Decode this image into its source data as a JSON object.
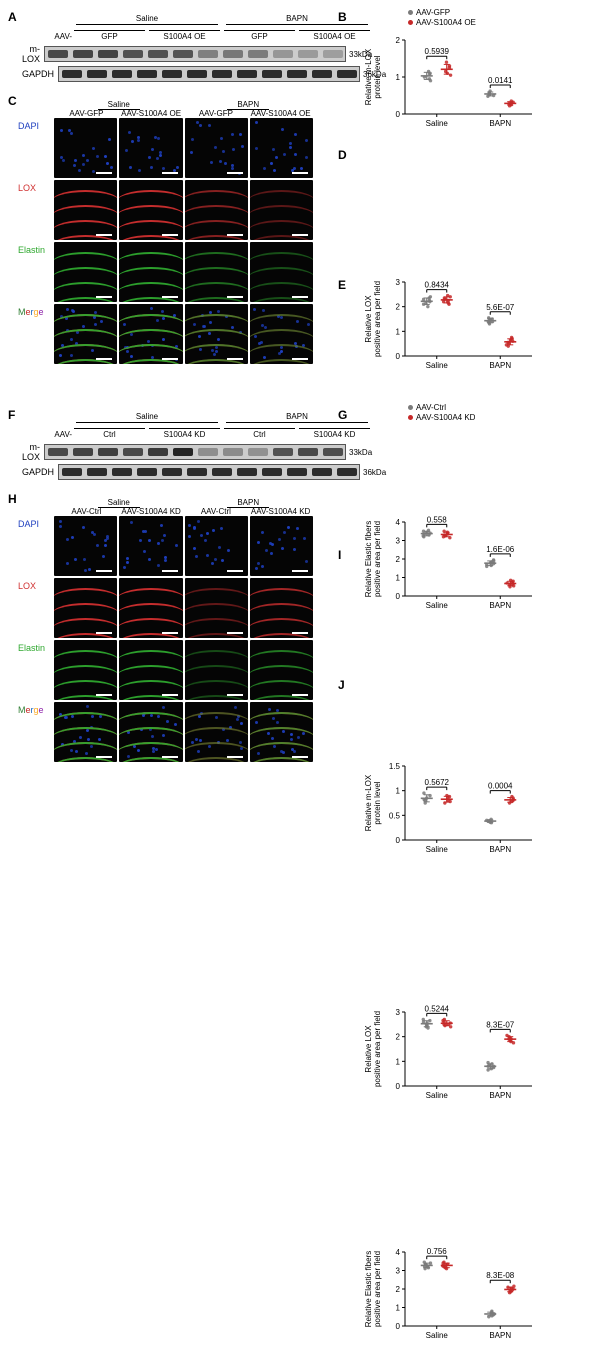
{
  "colors": {
    "gfp": "#7a7a7a",
    "oe": "#c62828",
    "ctrl": "#7a7a7a",
    "kd": "#c62828",
    "dapi": "#1e3fbf",
    "lox": "#d03030",
    "elastin": "#2fa82f",
    "black_bg": "#050505",
    "band_dark": "#1a1a1a",
    "band_mid": "#4d4d4d",
    "band_light": "#9d9d9d"
  },
  "legends": {
    "top": [
      {
        "label": "AAV-GFP",
        "color_key": "gfp"
      },
      {
        "label": "AAV-S100A4 OE",
        "color_key": "oe"
      }
    ],
    "bottom": [
      {
        "label": "AAV-Ctrl",
        "color_key": "ctrl"
      },
      {
        "label": "AAV-S100A4 KD",
        "color_key": "kd"
      }
    ]
  },
  "panels": {
    "A": {
      "treatments": [
        "Saline",
        "BAPN"
      ],
      "aav_prefix": "AAV-",
      "groups": [
        "GFP",
        "S100A4 OE",
        "GFP",
        "S100A4 OE"
      ],
      "rows": [
        {
          "label": "m-LOX",
          "mw": "33kDa",
          "intensity": [
            0.35,
            0.32,
            0.3,
            0.4,
            0.4,
            0.42,
            0.7,
            0.65,
            0.68,
            0.85,
            0.88,
            0.9
          ]
        },
        {
          "label": "GAPDH",
          "mw": "36kDa",
          "intensity": [
            0.15,
            0.15,
            0.15,
            0.15,
            0.15,
            0.15,
            0.15,
            0.15,
            0.15,
            0.15,
            0.15,
            0.15
          ]
        }
      ]
    },
    "B": {
      "ylabel": "Relative m-LOX\nprotein level",
      "ylim": [
        0,
        2
      ],
      "ytick_step": 1,
      "xcats": [
        "Saline",
        "BAPN"
      ],
      "series": [
        "gfp",
        "oe"
      ],
      "pvals": {
        "Saline": "0.5939",
        "BAPN": "0.0141"
      },
      "data": {
        "Saline": {
          "gfp": [
            1.0,
            1.15,
            0.95,
            1.08,
            0.9,
            1.1
          ],
          "oe": [
            1.25,
            1.1,
            1.4,
            1.15,
            1.3,
            1.05
          ]
        },
        "BAPN": {
          "gfp": [
            0.55,
            0.5,
            0.62,
            0.48,
            0.58,
            0.52
          ],
          "oe": [
            0.28,
            0.3,
            0.25,
            0.35,
            0.22,
            0.32
          ]
        }
      }
    },
    "C": {
      "top_groups": [
        "Saline",
        "BAPN"
      ],
      "cols": [
        "AAV-GFP",
        "AAV-S100A4 OE",
        "AAV-GFP",
        "AAV-S100A4 OE"
      ],
      "rows": [
        "DAPI",
        "LOX",
        "Elastin",
        "Merge"
      ],
      "signal": {
        "LOX": [
          1.0,
          1.0,
          0.55,
          0.25
        ],
        "Elastin": [
          1.0,
          1.0,
          0.55,
          0.3
        ]
      }
    },
    "D": {
      "ylabel": "Relative LOX\npositive area per field",
      "ylim": [
        0,
        3
      ],
      "ytick_step": 1,
      "xcats": [
        "Saline",
        "BAPN"
      ],
      "series": [
        "gfp",
        "oe"
      ],
      "pvals": {
        "Saline": "0.8434",
        "BAPN": "5.6E-07"
      },
      "data": {
        "Saline": {
          "gfp": [
            2.2,
            2.3,
            2.1,
            2.4,
            2.15,
            2.35,
            2.25,
            2.0
          ],
          "oe": [
            2.3,
            2.2,
            2.4,
            2.1,
            2.35,
            2.25,
            2.15,
            2.45
          ]
        },
        "BAPN": {
          "gfp": [
            1.4,
            1.5,
            1.35,
            1.55,
            1.3,
            1.45,
            1.5,
            1.4
          ],
          "oe": [
            0.55,
            0.6,
            0.45,
            0.7,
            0.5,
            0.65,
            0.4,
            0.75
          ]
        }
      }
    },
    "E": {
      "ylabel": "Relative Elastic fibers\npositive area per field",
      "ylim": [
        0,
        4
      ],
      "ytick_step": 1,
      "xcats": [
        "Saline",
        "BAPN"
      ],
      "series": [
        "gfp",
        "oe"
      ],
      "pvals": {
        "Saline": "0.558",
        "BAPN": "1.6E-06"
      },
      "data": {
        "Saline": {
          "gfp": [
            3.4,
            3.3,
            3.5,
            3.2,
            3.45,
            3.35,
            3.25,
            3.55
          ],
          "oe": [
            3.3,
            3.4,
            3.2,
            3.5,
            3.25,
            3.35,
            3.45,
            3.15
          ]
        },
        "BAPN": {
          "gfp": [
            1.8,
            1.7,
            1.9,
            1.6,
            1.85,
            1.75,
            1.65,
            1.95
          ],
          "oe": [
            0.7,
            0.6,
            0.8,
            0.5,
            0.75,
            0.65,
            0.55,
            0.85
          ]
        }
      }
    },
    "F": {
      "treatments": [
        "Saline",
        "BAPN"
      ],
      "aav_prefix": "AAV-",
      "groups": [
        "Ctrl",
        "S100A4 KD",
        "Ctrl",
        "S100A4 KD"
      ],
      "rows": [
        {
          "label": "m-LOX",
          "mw": "33kDa",
          "intensity": [
            0.35,
            0.3,
            0.28,
            0.35,
            0.25,
            0.1,
            0.8,
            0.78,
            0.82,
            0.4,
            0.35,
            0.38
          ]
        },
        {
          "label": "GAPDH",
          "mw": "36kDa",
          "intensity": [
            0.15,
            0.15,
            0.15,
            0.15,
            0.15,
            0.15,
            0.15,
            0.15,
            0.15,
            0.15,
            0.15,
            0.15
          ]
        }
      ]
    },
    "G": {
      "ylabel": "Relative m-LOX\nprotein level",
      "ylim": [
        0,
        1.5
      ],
      "ytick_step": 0.5,
      "xcats": [
        "Saline",
        "BAPN"
      ],
      "series": [
        "ctrl",
        "kd"
      ],
      "pvals": {
        "Saline": "0.5672",
        "BAPN": "0.0004"
      },
      "data": {
        "Saline": {
          "ctrl": [
            0.85,
            0.8,
            0.95,
            0.75,
            0.9,
            0.82
          ],
          "kd": [
            0.8,
            0.75,
            0.9,
            0.85,
            0.78,
            0.88
          ]
        },
        "BAPN": {
          "ctrl": [
            0.38,
            0.4,
            0.35,
            0.42,
            0.36,
            0.39
          ],
          "kd": [
            0.8,
            0.85,
            0.75,
            0.88,
            0.78,
            0.82
          ]
        }
      }
    },
    "H": {
      "top_groups": [
        "Saline",
        "BAPN"
      ],
      "cols": [
        "AAV-Ctrl",
        "AAV-S100A4 KD",
        "AAV-Ctrl",
        "AAV-S100A4 KD"
      ],
      "rows": [
        "DAPI",
        "LOX",
        "Elastin",
        "Merge"
      ],
      "signal": {
        "LOX": [
          1.0,
          1.0,
          0.3,
          0.75
        ],
        "Elastin": [
          1.0,
          1.0,
          0.25,
          0.65
        ]
      }
    },
    "I": {
      "ylabel": "Relative LOX\npositive area per field",
      "ylim": [
        0,
        3
      ],
      "ytick_step": 1,
      "xcats": [
        "Saline",
        "BAPN"
      ],
      "series": [
        "ctrl",
        "kd"
      ],
      "pvals": {
        "Saline": "0.5244",
        "BAPN": "8.3E-07"
      },
      "data": {
        "Saline": {
          "ctrl": [
            2.5,
            2.6,
            2.4,
            2.7,
            2.45,
            2.55,
            2.65,
            2.35
          ],
          "kd": [
            2.55,
            2.45,
            2.65,
            2.5,
            2.6,
            2.4,
            2.7,
            2.5
          ]
        },
        "BAPN": {
          "ctrl": [
            0.8,
            0.7,
            0.9,
            0.75,
            0.85,
            0.65,
            0.95,
            0.8
          ],
          "kd": [
            1.9,
            1.8,
            2.0,
            1.85,
            1.95,
            1.75,
            2.05,
            1.9
          ]
        }
      }
    },
    "J": {
      "ylabel": "Relative Elastic fibers\npositive area per field",
      "ylim": [
        0,
        4
      ],
      "ytick_step": 1,
      "xcats": [
        "Saline",
        "BAPN"
      ],
      "series": [
        "ctrl",
        "kd"
      ],
      "pvals": {
        "Saline": "0.756",
        "BAPN": "8.3E-08"
      },
      "data": {
        "Saline": {
          "ctrl": [
            3.3,
            3.2,
            3.4,
            3.1,
            3.35,
            3.25,
            3.15,
            3.45
          ],
          "kd": [
            3.25,
            3.35,
            3.15,
            3.4,
            3.2,
            3.3,
            3.45,
            3.1
          ]
        },
        "BAPN": {
          "ctrl": [
            0.65,
            0.6,
            0.7,
            0.55,
            0.75,
            0.5,
            0.8,
            0.65
          ],
          "kd": [
            2.0,
            1.9,
            2.1,
            1.85,
            2.05,
            1.8,
            2.15,
            1.95
          ]
        }
      }
    }
  }
}
